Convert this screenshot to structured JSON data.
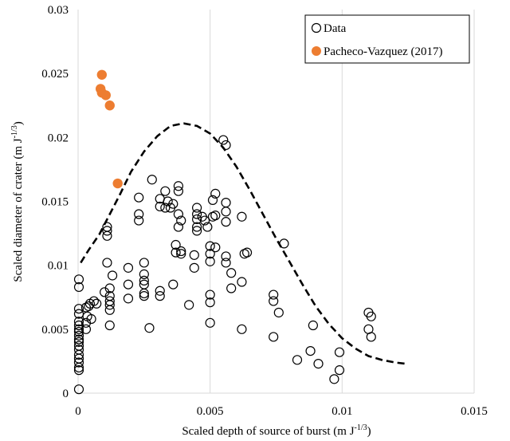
{
  "chart_data": {
    "type": "scatter",
    "xlabel": "Scaled depth of source of burst (m J",
    "xlabel_sup": "-1/3",
    "xlabel_end": ")",
    "ylabel": "Scaled diameter of crater (m J",
    "ylabel_sup": "-1/3",
    "ylabel_end": ")",
    "xlim": [
      0,
      0.015
    ],
    "ylim": [
      0,
      0.03
    ],
    "x_ticks": [
      0,
      0.005,
      0.01,
      0.015
    ],
    "x_tick_labels": [
      "0",
      "0.005",
      "0.01",
      "0.015"
    ],
    "y_ticks": [
      0,
      0.005,
      0.01,
      0.015,
      0.02,
      0.025,
      0.03
    ],
    "y_tick_labels": [
      "0",
      "0.005",
      "0.01",
      "0.015",
      "0.02",
      "0.025",
      "0.03"
    ],
    "grid": "vertical",
    "legend_position": "top-right",
    "colors": {
      "data": "#000000",
      "pacheco": "#ed7d31"
    },
    "series": [
      {
        "name": "Data",
        "marker": "open-circle",
        "points": [
          [
            3e-05,
            0.0003
          ],
          [
            3e-05,
            0.0018
          ],
          [
            3e-05,
            0.002
          ],
          [
            3e-05,
            0.0024
          ],
          [
            3e-05,
            0.0027
          ],
          [
            3e-05,
            0.003
          ],
          [
            3e-05,
            0.0034
          ],
          [
            3e-05,
            0.0037
          ],
          [
            3e-05,
            0.004
          ],
          [
            3e-05,
            0.0042
          ],
          [
            3e-05,
            0.0045
          ],
          [
            3e-05,
            0.0048
          ],
          [
            3e-05,
            0.005
          ],
          [
            3e-05,
            0.0053
          ],
          [
            3e-05,
            0.0056
          ],
          [
            3e-05,
            0.0062
          ],
          [
            3e-05,
            0.0066
          ],
          [
            3e-05,
            0.0083
          ],
          [
            3e-05,
            0.0089
          ],
          [
            0.0003,
            0.005
          ],
          [
            0.0003,
            0.0055
          ],
          [
            0.00035,
            0.006
          ],
          [
            0.0003,
            0.0067
          ],
          [
            0.0004,
            0.0068
          ],
          [
            0.00045,
            0.007
          ],
          [
            0.0006,
            0.0072
          ],
          [
            0.0007,
            0.007
          ],
          [
            0.0005,
            0.0058
          ],
          [
            0.0011,
            0.0102
          ],
          [
            0.0011,
            0.0123
          ],
          [
            0.0011,
            0.0127
          ],
          [
            0.0011,
            0.013
          ],
          [
            0.001,
            0.0079
          ],
          [
            0.0012,
            0.0082
          ],
          [
            0.0012,
            0.0076
          ],
          [
            0.0012,
            0.0072
          ],
          [
            0.0012,
            0.0069
          ],
          [
            0.0012,
            0.0065
          ],
          [
            0.0012,
            0.0053
          ],
          [
            0.0013,
            0.0092
          ],
          [
            0.0019,
            0.0098
          ],
          [
            0.0019,
            0.0085
          ],
          [
            0.0019,
            0.0074
          ],
          [
            0.0023,
            0.0153
          ],
          [
            0.0023,
            0.014
          ],
          [
            0.0023,
            0.0135
          ],
          [
            0.0025,
            0.0102
          ],
          [
            0.0025,
            0.0093
          ],
          [
            0.0025,
            0.0088
          ],
          [
            0.0025,
            0.0085
          ],
          [
            0.0025,
            0.0078
          ],
          [
            0.0025,
            0.0076
          ],
          [
            0.0027,
            0.0051
          ],
          [
            0.0028,
            0.0167
          ],
          [
            0.0031,
            0.0152
          ],
          [
            0.0031,
            0.0146
          ],
          [
            0.0031,
            0.008
          ],
          [
            0.0031,
            0.0076
          ],
          [
            0.0033,
            0.0158
          ],
          [
            0.0033,
            0.0145
          ],
          [
            0.0034,
            0.015
          ],
          [
            0.0035,
            0.0145
          ],
          [
            0.0036,
            0.0148
          ],
          [
            0.0037,
            0.0116
          ],
          [
            0.0037,
            0.011
          ],
          [
            0.0036,
            0.0085
          ],
          [
            0.0038,
            0.0162
          ],
          [
            0.0038,
            0.0158
          ],
          [
            0.0038,
            0.014
          ],
          [
            0.0038,
            0.013
          ],
          [
            0.0039,
            0.0135
          ],
          [
            0.0039,
            0.0111
          ],
          [
            0.0039,
            0.0109
          ],
          [
            0.0042,
            0.0069
          ],
          [
            0.0044,
            0.0108
          ],
          [
            0.0044,
            0.0098
          ],
          [
            0.0045,
            0.0145
          ],
          [
            0.0045,
            0.014
          ],
          [
            0.0045,
            0.0136
          ],
          [
            0.0045,
            0.013
          ],
          [
            0.0045,
            0.0127
          ],
          [
            0.0047,
            0.0138
          ],
          [
            0.0048,
            0.0135
          ],
          [
            0.0049,
            0.013
          ],
          [
            0.005,
            0.0115
          ],
          [
            0.005,
            0.0109
          ],
          [
            0.005,
            0.0103
          ],
          [
            0.005,
            0.0077
          ],
          [
            0.005,
            0.0071
          ],
          [
            0.005,
            0.0055
          ],
          [
            0.0051,
            0.0151
          ],
          [
            0.0051,
            0.0138
          ],
          [
            0.0052,
            0.0139
          ],
          [
            0.0052,
            0.0114
          ],
          [
            0.0052,
            0.0156
          ],
          [
            0.0055,
            0.0198
          ],
          [
            0.0056,
            0.0194
          ],
          [
            0.0056,
            0.0149
          ],
          [
            0.0056,
            0.0142
          ],
          [
            0.0056,
            0.0134
          ],
          [
            0.0056,
            0.0107
          ],
          [
            0.0056,
            0.0102
          ],
          [
            0.0058,
            0.0082
          ],
          [
            0.0058,
            0.0094
          ],
          [
            0.0062,
            0.0138
          ],
          [
            0.0062,
            0.0087
          ],
          [
            0.0062,
            0.005
          ],
          [
            0.0063,
            0.0109
          ],
          [
            0.0064,
            0.011
          ],
          [
            0.0074,
            0.0077
          ],
          [
            0.0074,
            0.0072
          ],
          [
            0.0074,
            0.0044
          ],
          [
            0.0076,
            0.0063
          ],
          [
            0.0078,
            0.0117
          ],
          [
            0.0083,
            0.0026
          ],
          [
            0.0088,
            0.0033
          ],
          [
            0.0089,
            0.0053
          ],
          [
            0.0091,
            0.0023
          ],
          [
            0.0097,
            0.0011
          ],
          [
            0.0099,
            0.0032
          ],
          [
            0.0099,
            0.0018
          ],
          [
            0.011,
            0.0063
          ],
          [
            0.0111,
            0.006
          ],
          [
            0.011,
            0.005
          ],
          [
            0.0111,
            0.0044
          ]
        ]
      },
      {
        "name": "Pacheco-Vazquez (2017)",
        "marker": "filled-circle",
        "points": [
          [
            0.0009,
            0.0249
          ],
          [
            0.00085,
            0.0238
          ],
          [
            0.0009,
            0.0235
          ],
          [
            0.00105,
            0.0233
          ],
          [
            0.0012,
            0.0225
          ],
          [
            0.0015,
            0.0164
          ]
        ]
      }
    ],
    "curve": {
      "style": "dashed",
      "points": [
        [
          0.0001,
          0.0102
        ],
        [
          0.0004,
          0.0112
        ],
        [
          0.0008,
          0.0124
        ],
        [
          0.0012,
          0.014
        ],
        [
          0.0016,
          0.0156
        ],
        [
          0.002,
          0.0173
        ],
        [
          0.0025,
          0.0189
        ],
        [
          0.003,
          0.0201
        ],
        [
          0.0035,
          0.0209
        ],
        [
          0.004,
          0.0211
        ],
        [
          0.0045,
          0.0209
        ],
        [
          0.005,
          0.0203
        ],
        [
          0.0055,
          0.0192
        ],
        [
          0.006,
          0.0177
        ],
        [
          0.0065,
          0.0159
        ],
        [
          0.007,
          0.014
        ],
        [
          0.0075,
          0.0121
        ],
        [
          0.008,
          0.0103
        ],
        [
          0.0085,
          0.0085
        ],
        [
          0.009,
          0.0068
        ],
        [
          0.0095,
          0.0054
        ],
        [
          0.01,
          0.0043
        ],
        [
          0.0105,
          0.0035
        ],
        [
          0.011,
          0.0029
        ],
        [
          0.0115,
          0.0026
        ],
        [
          0.012,
          0.0024
        ],
        [
          0.0124,
          0.0023
        ]
      ]
    }
  }
}
